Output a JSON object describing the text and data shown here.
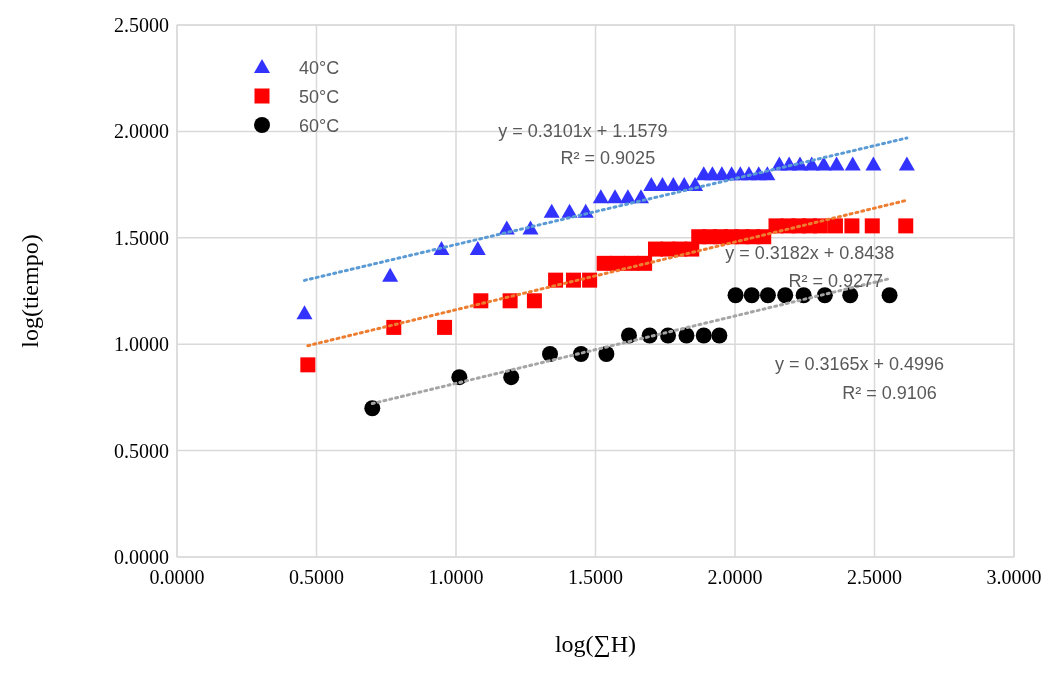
{
  "chart_data": {
    "type": "scatter",
    "xlabel": "log(∑H)",
    "ylabel": "log(tiempo)",
    "xlim": [
      0,
      3
    ],
    "ylim": [
      0,
      2.5
    ],
    "xticks": [
      {
        "value": 0,
        "label": "0.0000"
      },
      {
        "value": 0.5,
        "label": "0.5000"
      },
      {
        "value": 1,
        "label": "1.0000"
      },
      {
        "value": 1.5,
        "label": "1.5000"
      },
      {
        "value": 2,
        "label": "2.0000"
      },
      {
        "value": 2.5,
        "label": "2.5000"
      },
      {
        "value": 3,
        "label": "3.0000"
      }
    ],
    "yticks": [
      {
        "value": 0,
        "label": "0.0000"
      },
      {
        "value": 0.5,
        "label": "0.5000"
      },
      {
        "value": 1,
        "label": "1.0000"
      },
      {
        "value": 1.5,
        "label": "1.5000"
      },
      {
        "value": 2,
        "label": "2.0000"
      },
      {
        "value": 2.5,
        "label": "2.5000"
      }
    ],
    "grid": true,
    "legend": "top left",
    "series": [
      {
        "name": "40°C",
        "color": "#3333ff",
        "marker": "triangle",
        "x": [
          0.457,
          0.764,
          0.948,
          1.078,
          1.182,
          1.267,
          1.343,
          1.407,
          1.465,
          1.519,
          1.57,
          1.616,
          1.663,
          1.7,
          1.74,
          1.779,
          1.818,
          1.857,
          1.888,
          1.919,
          1.953,
          1.988,
          2.019,
          2.05,
          2.085,
          2.116,
          2.159,
          2.194,
          2.233,
          2.275,
          2.318,
          2.364,
          2.422,
          2.496,
          2.616
        ],
        "values": [
          1.146,
          1.322,
          1.447,
          1.447,
          1.544,
          1.544,
          1.623,
          1.623,
          1.623,
          1.69,
          1.69,
          1.69,
          1.69,
          1.748,
          1.748,
          1.748,
          1.748,
          1.748,
          1.799,
          1.799,
          1.799,
          1.799,
          1.799,
          1.799,
          1.799,
          1.799,
          1.845,
          1.845,
          1.845,
          1.845,
          1.845,
          1.845,
          1.845,
          1.845,
          1.845
        ]
      },
      {
        "name": "50°C",
        "color": "#ff0000",
        "marker": "square",
        "x": [
          0.469,
          0.777,
          0.959,
          1.089,
          1.194,
          1.281,
          1.357,
          1.421,
          1.479,
          1.531,
          1.579,
          1.628,
          1.676,
          1.715,
          1.76,
          1.802,
          1.845,
          1.87,
          1.909,
          1.948,
          1.986,
          2.025,
          2.064,
          2.103,
          2.147,
          2.19,
          2.229,
          2.267,
          2.306,
          2.36,
          2.419,
          2.492,
          2.612
        ],
        "values": [
          0.903,
          1.079,
          1.079,
          1.204,
          1.204,
          1.204,
          1.301,
          1.301,
          1.301,
          1.38,
          1.38,
          1.38,
          1.38,
          1.447,
          1.447,
          1.447,
          1.447,
          1.505,
          1.505,
          1.505,
          1.505,
          1.505,
          1.505,
          1.505,
          1.556,
          1.556,
          1.556,
          1.556,
          1.556,
          1.556,
          1.556,
          1.556,
          1.556
        ]
      },
      {
        "name": "60°C",
        "color": "#000000",
        "marker": "circle",
        "x": [
          0.7,
          1.012,
          1.198,
          1.337,
          1.448,
          1.539,
          1.62,
          1.694,
          1.76,
          1.826,
          1.888,
          1.944,
          2.002,
          2.06,
          2.118,
          2.18,
          2.246,
          2.322,
          2.413,
          2.554
        ],
        "values": [
          0.699,
          0.845,
          0.845,
          0.954,
          0.954,
          0.954,
          1.041,
          1.041,
          1.041,
          1.041,
          1.041,
          1.041,
          1.23,
          1.23,
          1.23,
          1.23,
          1.23,
          1.23,
          1.23,
          1.23
        ]
      },
      {
        "type": "line",
        "color": "#5b9bd5",
        "marker": "none",
        "line_style": "dotted",
        "x": [
          0.457,
          2.616
        ],
        "values": [
          1.3,
          1.969
        ]
      },
      {
        "type": "line",
        "color": "#ed7d31",
        "marker": "none",
        "line_style": "dotted",
        "x": [
          0.469,
          2.612
        ],
        "values": [
          0.993,
          1.675
        ]
      },
      {
        "type": "line",
        "color": "#a5a5a5",
        "marker": "none",
        "line_style": "dotted",
        "x": [
          0.7,
          2.554
        ],
        "values": [
          0.721,
          1.308
        ]
      }
    ],
    "annotations": [
      "y = 0.3101x + 1.1579",
      "R² = 0.9025",
      "y = 0.3182x + 0.8438",
      "R² = 0.9277",
      "y = 0.3165x + 0.4996",
      "R² = 0.9106"
    ]
  }
}
